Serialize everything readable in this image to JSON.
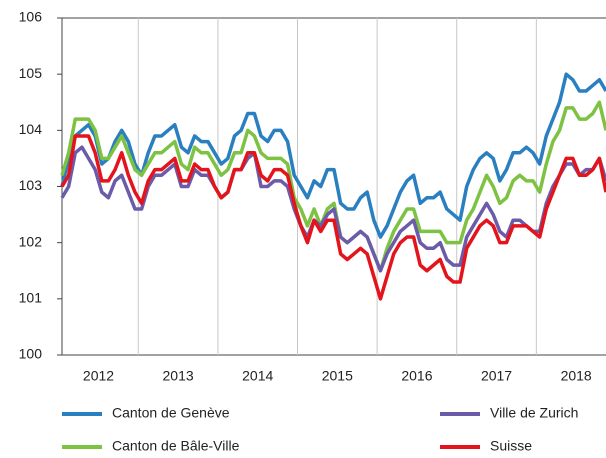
{
  "chart_data": {
    "type": "line",
    "categories": [
      null,
      null,
      null,
      null,
      null,
      null,
      "2012",
      null,
      null,
      null,
      null,
      null,
      null,
      null,
      null,
      null,
      null,
      null,
      "2013",
      null,
      null,
      null,
      null,
      null,
      null,
      null,
      null,
      null,
      null,
      null,
      "2014",
      null,
      null,
      null,
      null,
      null,
      null,
      null,
      null,
      null,
      null,
      null,
      "2015",
      null,
      null,
      null,
      null,
      null,
      null,
      null,
      null,
      null,
      null,
      null,
      "2016",
      null,
      null,
      null,
      null,
      null,
      null,
      null,
      null,
      null,
      null,
      null,
      "2017",
      null,
      null,
      null,
      null,
      null,
      null,
      null,
      null,
      null,
      null,
      null,
      "2018",
      null,
      null,
      null,
      null
    ],
    "series": [
      {
        "name": "Canton de Genève",
        "color": "#2a7fc1",
        "values": [
          103.0,
          103.5,
          103.9,
          104.0,
          104.1,
          103.9,
          103.4,
          103.5,
          103.8,
          104.0,
          103.8,
          103.4,
          103.2,
          103.6,
          103.9,
          103.9,
          104.0,
          104.1,
          103.7,
          103.6,
          103.9,
          103.8,
          103.8,
          103.6,
          103.4,
          103.5,
          103.9,
          104.0,
          104.3,
          104.3,
          103.9,
          103.8,
          104.0,
          104.0,
          103.8,
          103.2,
          103.0,
          102.8,
          103.1,
          103.0,
          103.3,
          103.3,
          102.7,
          102.6,
          102.6,
          102.8,
          102.9,
          102.4,
          102.1,
          102.3,
          102.6,
          102.9,
          103.1,
          103.2,
          102.7,
          102.8,
          102.8,
          102.9,
          102.6,
          102.5,
          102.4,
          103.0,
          103.3,
          103.5,
          103.6,
          103.5,
          103.1,
          103.3,
          103.6,
          103.6,
          103.7,
          103.6,
          103.4,
          103.9,
          104.2,
          104.5,
          105.0,
          104.9,
          104.7,
          104.7,
          104.8,
          104.9,
          104.7
        ]
      },
      {
        "name": "Canton de Bâle-Ville",
        "color": "#7dc242",
        "values": [
          103.2,
          103.6,
          104.2,
          104.2,
          104.2,
          104.0,
          103.5,
          103.5,
          103.7,
          103.9,
          103.6,
          103.3,
          103.2,
          103.4,
          103.6,
          103.6,
          103.7,
          103.8,
          103.4,
          103.3,
          103.7,
          103.6,
          103.6,
          103.4,
          103.2,
          103.3,
          103.6,
          103.6,
          104.0,
          103.9,
          103.6,
          103.5,
          103.5,
          103.5,
          103.4,
          102.8,
          102.6,
          102.3,
          102.6,
          102.3,
          102.6,
          102.7,
          102.1,
          102.0,
          102.1,
          102.2,
          102.1,
          101.8,
          101.5,
          101.9,
          102.2,
          102.4,
          102.6,
          102.6,
          102.2,
          102.2,
          102.2,
          102.2,
          102.0,
          102.0,
          102.0,
          102.4,
          102.6,
          102.9,
          103.2,
          103.0,
          102.7,
          102.8,
          103.1,
          103.2,
          103.1,
          103.1,
          102.9,
          103.4,
          103.8,
          104.0,
          104.4,
          104.4,
          104.2,
          104.2,
          104.3,
          104.5,
          104.0
        ]
      },
      {
        "name": "Ville de Zurich",
        "color": "#6b5ba8",
        "values": [
          102.8,
          103.0,
          103.6,
          103.7,
          103.5,
          103.3,
          102.9,
          102.8,
          103.1,
          103.2,
          102.9,
          102.6,
          102.6,
          103.0,
          103.2,
          103.2,
          103.3,
          103.4,
          103.0,
          103.0,
          103.3,
          103.2,
          103.2,
          103.0,
          102.8,
          102.9,
          103.3,
          103.3,
          103.5,
          103.6,
          103.0,
          103.0,
          103.1,
          103.1,
          103.0,
          102.6,
          102.3,
          102.1,
          102.4,
          102.3,
          102.5,
          102.6,
          102.1,
          102.0,
          102.1,
          102.2,
          102.1,
          101.8,
          101.5,
          101.8,
          102.0,
          102.2,
          102.3,
          102.4,
          102.0,
          101.9,
          101.9,
          102.0,
          101.7,
          101.6,
          101.6,
          102.1,
          102.3,
          102.5,
          102.7,
          102.5,
          102.2,
          102.1,
          102.4,
          102.4,
          102.3,
          102.2,
          102.2,
          102.7,
          103.0,
          103.2,
          103.4,
          103.4,
          103.2,
          103.3,
          103.3,
          103.5,
          103.1
        ]
      },
      {
        "name": "Suisse",
        "color": "#e3141b",
        "values": [
          103.0,
          103.2,
          103.9,
          103.9,
          103.9,
          103.6,
          103.1,
          103.1,
          103.3,
          103.6,
          103.2,
          102.9,
          102.7,
          103.1,
          103.3,
          103.3,
          103.4,
          103.5,
          103.1,
          103.1,
          103.4,
          103.3,
          103.3,
          103.0,
          102.8,
          102.9,
          103.3,
          103.3,
          103.6,
          103.6,
          103.2,
          103.1,
          103.3,
          103.3,
          103.2,
          102.7,
          102.3,
          102.0,
          102.4,
          102.2,
          102.4,
          102.4,
          101.8,
          101.7,
          101.8,
          101.9,
          101.8,
          101.4,
          101.0,
          101.4,
          101.8,
          102.0,
          102.1,
          102.1,
          101.6,
          101.5,
          101.6,
          101.7,
          101.4,
          101.3,
          101.3,
          101.9,
          102.1,
          102.3,
          102.4,
          102.3,
          102.0,
          102.0,
          102.3,
          102.3,
          102.3,
          102.2,
          102.1,
          102.6,
          102.9,
          103.2,
          103.5,
          103.5,
          103.2,
          103.2,
          103.3,
          103.5,
          102.9
        ]
      }
    ],
    "ylim": [
      100,
      106
    ],
    "yticks": [
      100,
      101,
      102,
      103,
      104,
      105,
      106
    ]
  }
}
